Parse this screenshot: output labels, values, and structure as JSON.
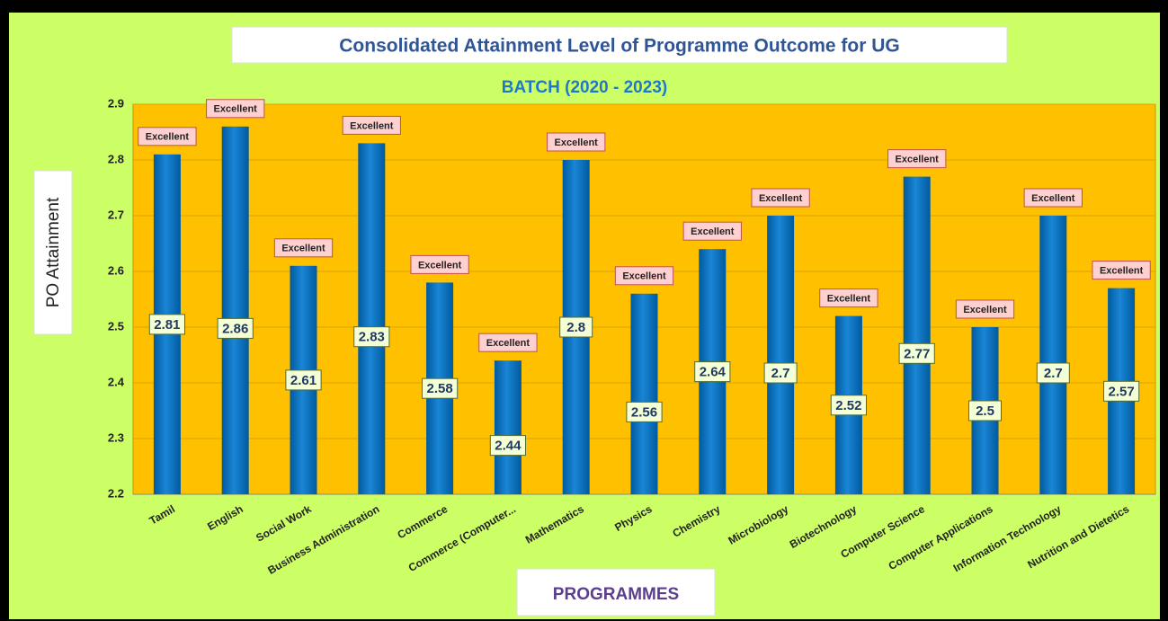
{
  "chart_data": {
    "type": "bar",
    "title": "Consolidated Attainment Level of Programme Outcome for UG",
    "subtitle": "BATCH  (2020 - 2023)",
    "ylabel": "PO Attainment",
    "xlabel": "PROGRAMMES",
    "categories": [
      "Tamil",
      "English",
      "Social Work",
      "Business Administration",
      "Commerce",
      "Commerce (Computer...",
      "Mathematics",
      "Physics",
      "Chemistry",
      "Microbiology",
      "Biotechnology",
      "Computer Science",
      "Computer Applications",
      "Information Technology",
      "Nutrition and Dietetics"
    ],
    "values": [
      2.81,
      2.86,
      2.61,
      2.83,
      2.58,
      2.44,
      2.8,
      2.56,
      2.64,
      2.7,
      2.52,
      2.77,
      2.5,
      2.7,
      2.57
    ],
    "annotations": [
      "Excellent",
      "Excellent",
      "Excellent",
      "Excellent",
      "Excellent",
      "Excellent",
      "Excellent",
      "Excellent",
      "Excellent",
      "Excellent",
      "Excellent",
      "Excellent",
      "Excellent",
      "Excellent",
      "Excellent"
    ],
    "color": "#0070c0",
    "ylim": [
      2.2,
      2.9
    ],
    "yticks": [
      2.2,
      2.3,
      2.4,
      2.5,
      2.6,
      2.7,
      2.8,
      2.9
    ],
    "grid": true
  }
}
